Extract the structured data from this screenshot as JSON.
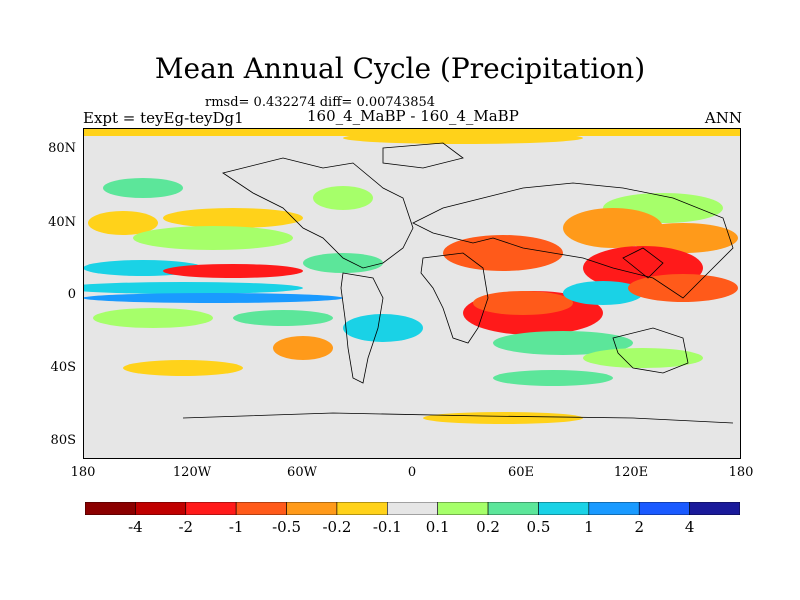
{
  "title": "Mean Annual Cycle (Precipitation)",
  "stats": "rmsd= 0.432274 diff= 0.00743854",
  "expt": "Expt = teyEg-teyDg1",
  "case": "160_4_MaBP - 160_4_MaBP",
  "season": "ANN",
  "lat_labels": [
    "80N",
    "40N",
    "0",
    "40S",
    "80S"
  ],
  "lon_labels": [
    "180",
    "120W",
    "60W",
    "0",
    "60E",
    "120E",
    "180"
  ],
  "colorbar": {
    "colors": [
      "#8b0000",
      "#c00000",
      "#ff1a1a",
      "#ff5a1a",
      "#ff9a1a",
      "#ffd21a",
      "#e6e6e6",
      "#a6ff6a",
      "#5ce69a",
      "#1ad2e6",
      "#1a9aff",
      "#1a5aff",
      "#1a1a9a"
    ],
    "labels": [
      "-4",
      "-2",
      "-1",
      "-0.5",
      "-0.2",
      "-0.1",
      "0.1",
      "0.2",
      "0.5",
      "1",
      "2",
      "4"
    ]
  }
}
